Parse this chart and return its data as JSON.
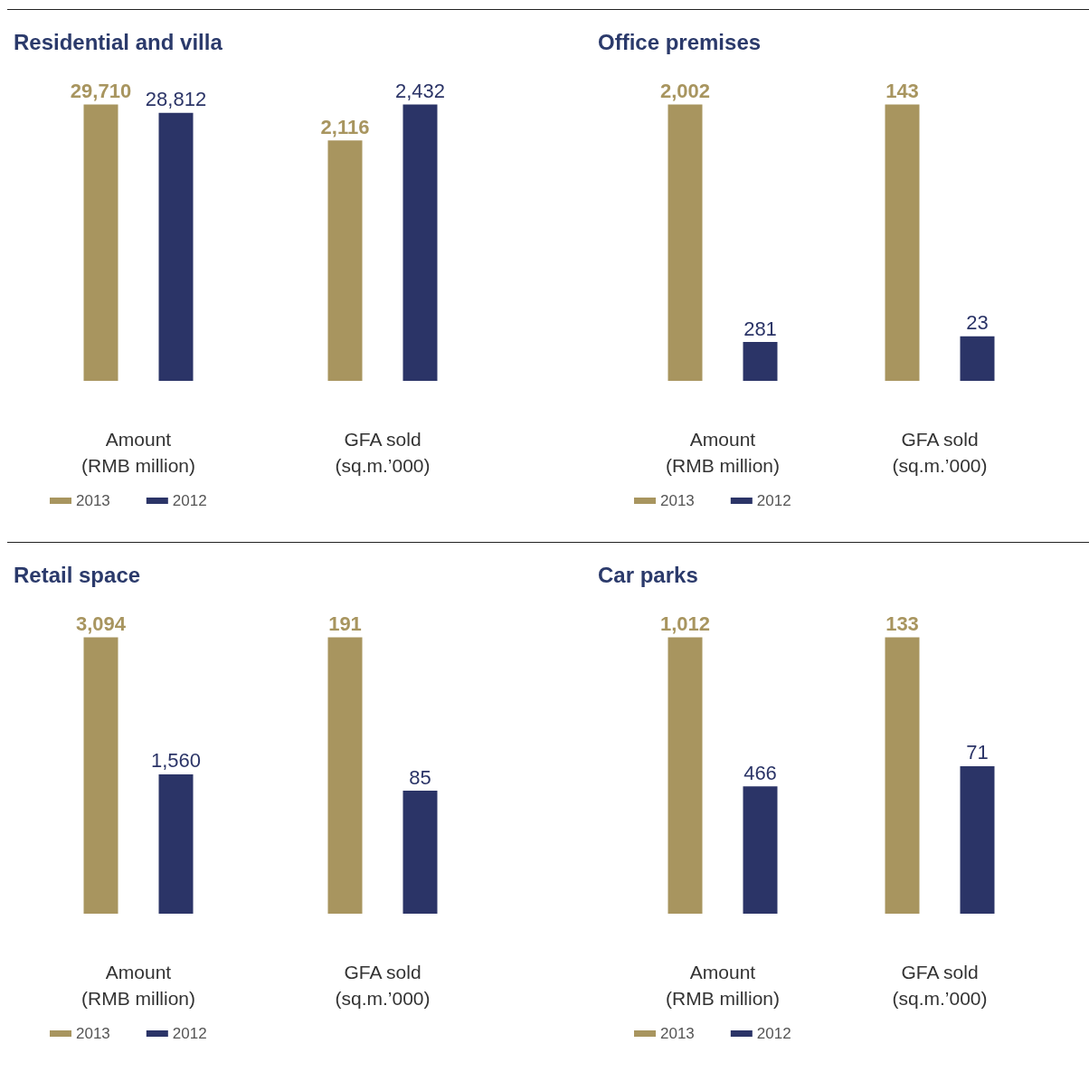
{
  "chart_data": [
    {
      "type": "bar",
      "title": "Residential and villa",
      "categories": [
        null,
        null
      ],
      "stacked": true,
      "xlabel": "Amount\n(RMB million)",
      "legend": "bottom",
      "series": [
        {
          "name": "2013",
          "color": "#a8955f",
          "values": [
            29710,
            null
          ],
          "value_labels": [
            "29,710",
            null
          ]
        },
        {
          "name": "2012",
          "color": "#2b3467",
          "values": [
            null,
            28812
          ],
          "value_labels": [
            null,
            "28,812"
          ]
        }
      ]
    },
    {
      "type": "bar",
      "categories": [
        null,
        null
      ],
      "stacked": true,
      "xlabel": "GFA sold\n(sq.m.’000)",
      "series": [
        {
          "color": "#a8955f",
          "values": [
            2116,
            null
          ],
          "value_labels": [
            "2,116",
            null
          ]
        },
        {
          "color": "#2b3467",
          "values": [
            null,
            2432
          ],
          "value_labels": [
            null,
            "2,432"
          ]
        }
      ]
    },
    {
      "type": "bar",
      "title": "Office premises",
      "categories": [
        null,
        null
      ],
      "stacked": true,
      "xlabel": "Amount\n(RMB million)",
      "legend": "bottom",
      "series": [
        {
          "name": "2013",
          "color": "#a8955f",
          "values": [
            2002,
            null
          ],
          "value_labels": [
            "2,002",
            null
          ]
        },
        {
          "name": "2012",
          "color": "#2b3467",
          "values": [
            null,
            281
          ],
          "value_labels": [
            null,
            "281"
          ]
        }
      ]
    },
    {
      "type": "bar",
      "categories": [
        null,
        null
      ],
      "stacked": true,
      "xlabel": "GFA sold\n(sq.m.’000)",
      "series": [
        {
          "color": "#a8955f",
          "values": [
            143,
            null
          ],
          "value_labels": [
            "143",
            null
          ]
        },
        {
          "color": "#2b3467",
          "values": [
            null,
            23
          ],
          "value_labels": [
            null,
            "23"
          ]
        }
      ]
    },
    {
      "type": "bar",
      "title": "Retail space",
      "categories": [
        null,
        null
      ],
      "stacked": true,
      "xlabel": "Amount\n(RMB million)",
      "legend": "bottom",
      "series": [
        {
          "name": "2013",
          "color": "#a8955f",
          "values": [
            3094,
            null
          ],
          "value_labels": [
            "3,094",
            null
          ]
        },
        {
          "name": "2012",
          "color": "#2b3467",
          "values": [
            null,
            1560
          ],
          "value_labels": [
            null,
            "1,560"
          ]
        }
      ]
    },
    {
      "type": "bar",
      "categories": [
        null,
        null
      ],
      "stacked": true,
      "xlabel": "GFA sold\n(sq.m.’000)",
      "series": [
        {
          "color": "#a8955f",
          "values": [
            191,
            null
          ],
          "value_labels": [
            "191",
            null
          ]
        },
        {
          "color": "#2b3467",
          "values": [
            null,
            85
          ],
          "value_labels": [
            null,
            "85"
          ]
        }
      ]
    },
    {
      "type": "bar",
      "title": "Car parks",
      "categories": [
        null,
        null
      ],
      "stacked": true,
      "xlabel": "Amount\n(RMB million)",
      "legend": "bottom",
      "series": [
        {
          "name": "2013",
          "color": "#a8955f",
          "values": [
            1012,
            null
          ],
          "value_labels": [
            "1,012",
            null
          ]
        },
        {
          "name": "2012",
          "color": "#2b3467",
          "values": [
            null,
            466
          ],
          "value_labels": [
            null,
            "466"
          ]
        }
      ]
    },
    {
      "type": "bar",
      "categories": [
        null,
        null
      ],
      "stacked": true,
      "xlabel": "GFA sold\n(sq.m.’000)",
      "series": [
        {
          "color": "#a8955f",
          "values": [
            133,
            null
          ],
          "value_labels": [
            "133",
            null
          ]
        },
        {
          "color": "#2b3467",
          "values": [
            null,
            71
          ],
          "value_labels": [
            null,
            "71"
          ]
        }
      ]
    }
  ]
}
